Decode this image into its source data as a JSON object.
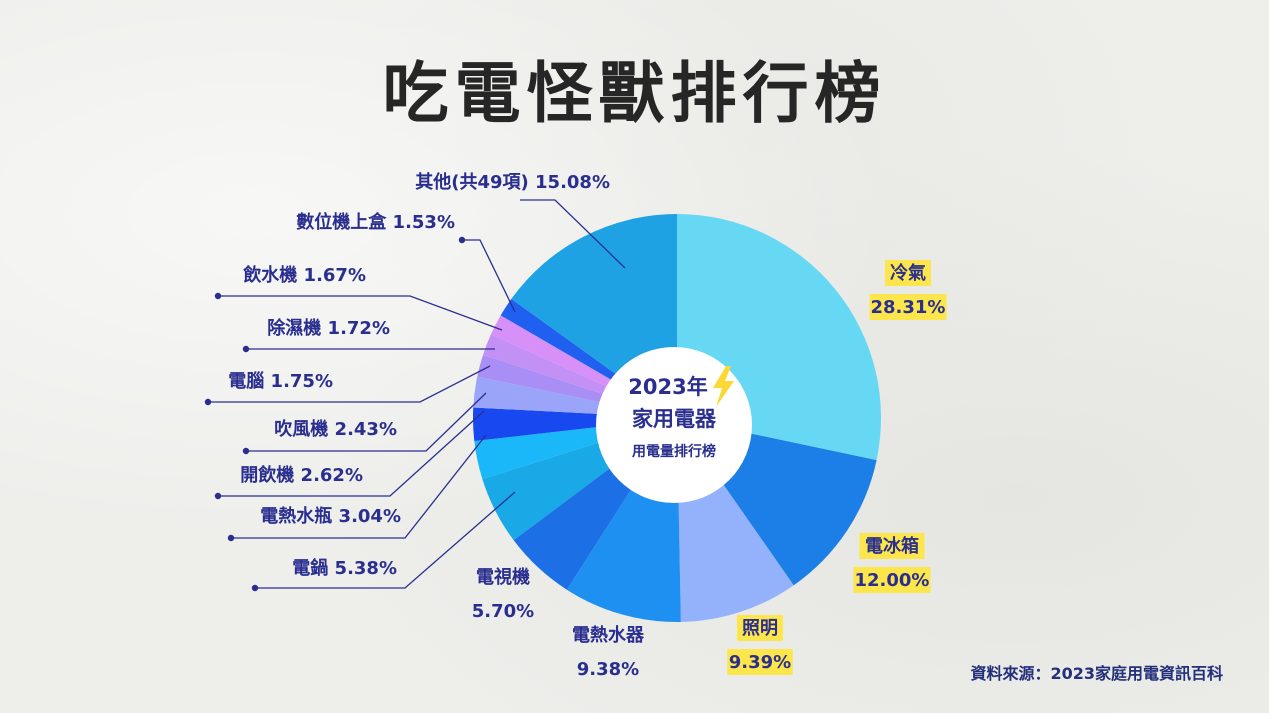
{
  "title": "吃電怪獸排行榜",
  "center": {
    "line1": "2023年",
    "line2": "家用電器",
    "line3": "用電量排行榜"
  },
  "source": "資料來源：2023家庭用電資訊百科",
  "colors": {
    "label_text": "#2a2f8f",
    "highlight": "#fde64b",
    "leader_line": "#2a2f8f"
  },
  "chart_data": {
    "type": "pie",
    "title": "吃電怪獸排行榜",
    "unit": "%",
    "slices": [
      {
        "name": "冷氣",
        "value": 28.31,
        "label": "28.31%",
        "color": "#67d8f3",
        "highlighted": true
      },
      {
        "name": "電冰箱",
        "value": 12.0,
        "label": "12.00%",
        "color": "#1c7fe8",
        "highlighted": true
      },
      {
        "name": "照明",
        "value": 9.39,
        "label": "9.39%",
        "color": "#93b2fb",
        "highlighted": true
      },
      {
        "name": "電熱水器",
        "value": 9.38,
        "label": "9.38%",
        "color": "#1e90f2",
        "highlighted": false
      },
      {
        "name": "電視機",
        "value": 5.7,
        "label": "5.70%",
        "color": "#1d6fe6",
        "highlighted": false
      },
      {
        "name": "電鍋",
        "value": 5.38,
        "label": "5.38%",
        "color": "#1aa9e7",
        "highlighted": false
      },
      {
        "name": "電熱水瓶",
        "value": 3.04,
        "label": "3.04%",
        "color": "#1ab8f8",
        "highlighted": false
      },
      {
        "name": "開飲機",
        "value": 2.62,
        "label": "2.62%",
        "color": "#1848f0",
        "highlighted": false
      },
      {
        "name": "吹風機",
        "value": 2.43,
        "label": "2.43%",
        "color": "#9aa4f8",
        "highlighted": false
      },
      {
        "name": "電腦",
        "value": 1.75,
        "label": "1.75%",
        "color": "#a98ff5",
        "highlighted": false
      },
      {
        "name": "除濕機",
        "value": 1.72,
        "label": "1.72%",
        "color": "#c390f6",
        "highlighted": false
      },
      {
        "name": "飲水機",
        "value": 1.67,
        "label": "1.67%",
        "color": "#d690f8",
        "highlighted": false
      },
      {
        "name": "數位機上盒",
        "value": 1.53,
        "label": "1.53%",
        "color": "#2060f0",
        "highlighted": false
      },
      {
        "name": "其他(共49項)",
        "value": 15.08,
        "label": "15.08%",
        "color": "#1ea2e4",
        "highlighted": false
      }
    ]
  }
}
